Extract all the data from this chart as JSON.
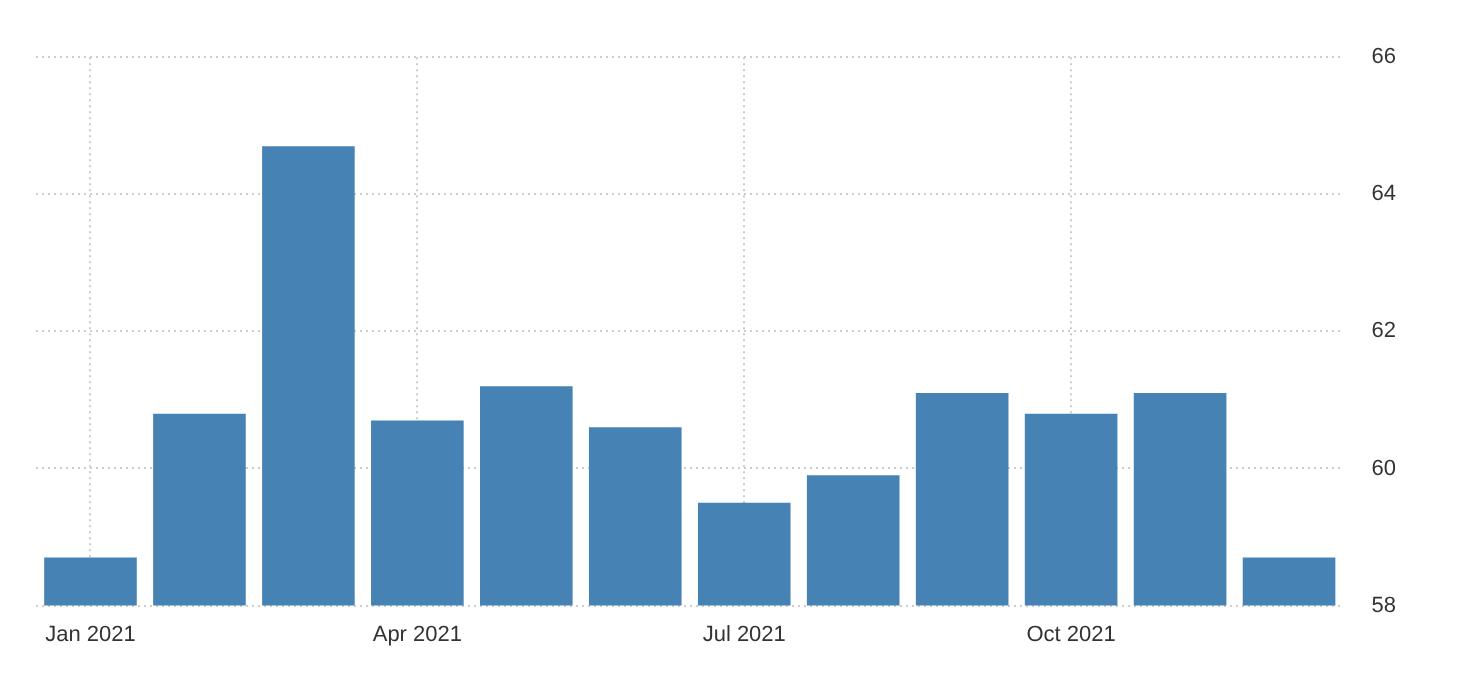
{
  "chart_data": {
    "type": "bar",
    "categories": [
      "Jan 2021",
      null,
      null,
      "Apr 2021",
      null,
      null,
      "Jul 2021",
      null,
      null,
      "Oct 2021",
      null,
      null
    ],
    "values": [
      58.7,
      60.8,
      64.7,
      60.7,
      61.2,
      60.6,
      59.5,
      59.9,
      61.1,
      60.8,
      61.1,
      58.7
    ],
    "color": "#4682b4",
    "ylim": [
      58,
      66
    ],
    "yticks": [
      58,
      60,
      62,
      64,
      66
    ],
    "grid": true
  }
}
